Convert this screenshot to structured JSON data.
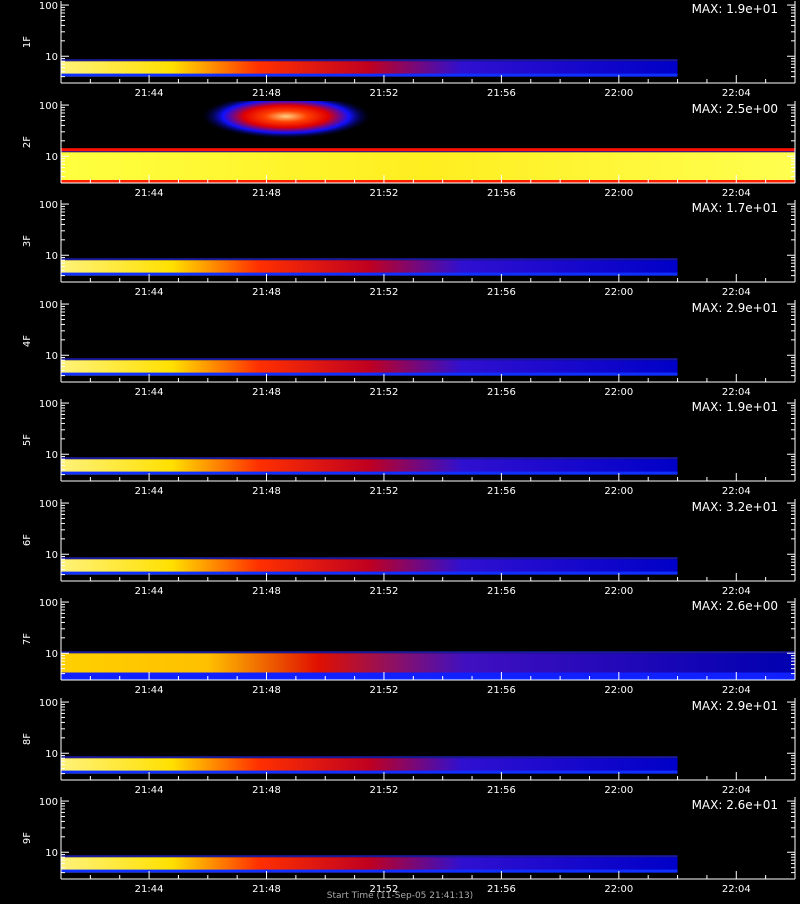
{
  "chart_data": {
    "type": "heatmap",
    "x_axis": {
      "ticks": [
        "21:44",
        "21:48",
        "21:52",
        "21:56",
        "22:00",
        "22:04"
      ],
      "range": [
        "21:41:00",
        "22:06:00"
      ]
    },
    "y_axis": {
      "scale": "log",
      "ticks": [
        "10",
        "100"
      ],
      "range": [
        3,
        120
      ]
    },
    "colormap": [
      "#000000",
      "#0000ff",
      "#ff0000",
      "#ffff00",
      "#ffffff"
    ],
    "panels": [
      {
        "label": "1F",
        "max_text": "MAX: 1.9e+01",
        "band": {
          "y_low": 4,
          "y_high": 8,
          "data_end": "22:02:00"
        }
      },
      {
        "label": "2F",
        "max_text": "MAX: 2.5e+00",
        "band": {
          "y_low": 3,
          "y_high": 12,
          "data_end": "22:06:00"
        },
        "blob": {
          "time_center": "21:48:40",
          "y_center": 60,
          "time_halfwidth_min": 2.5
        }
      },
      {
        "label": "3F",
        "max_text": "MAX: 1.7e+01",
        "band": {
          "y_low": 4,
          "y_high": 8,
          "data_end": "22:02:00"
        }
      },
      {
        "label": "4F",
        "max_text": "MAX: 2.9e+01",
        "band": {
          "y_low": 4,
          "y_high": 8,
          "data_end": "22:02:00"
        }
      },
      {
        "label": "5F",
        "max_text": "MAX: 1.9e+01",
        "band": {
          "y_low": 4,
          "y_high": 8,
          "data_end": "22:02:00"
        }
      },
      {
        "label": "6F",
        "max_text": "MAX: 3.2e+01",
        "band": {
          "y_low": 4,
          "y_high": 8,
          "data_end": "22:02:00"
        }
      },
      {
        "label": "7F",
        "max_text": "MAX: 2.6e+00",
        "band": {
          "y_low": 3,
          "y_high": 10,
          "data_end": "22:06:00"
        }
      },
      {
        "label": "8F",
        "max_text": "MAX: 2.9e+01",
        "band": {
          "y_low": 4,
          "y_high": 8,
          "data_end": "22:02:00"
        }
      },
      {
        "label": "9F",
        "max_text": "MAX: 2.6e+01",
        "band": {
          "y_low": 4,
          "y_high": 8,
          "data_end": "22:02:00"
        }
      }
    ],
    "footer": "Start Time (11-Sep-05 21:41:13)"
  }
}
